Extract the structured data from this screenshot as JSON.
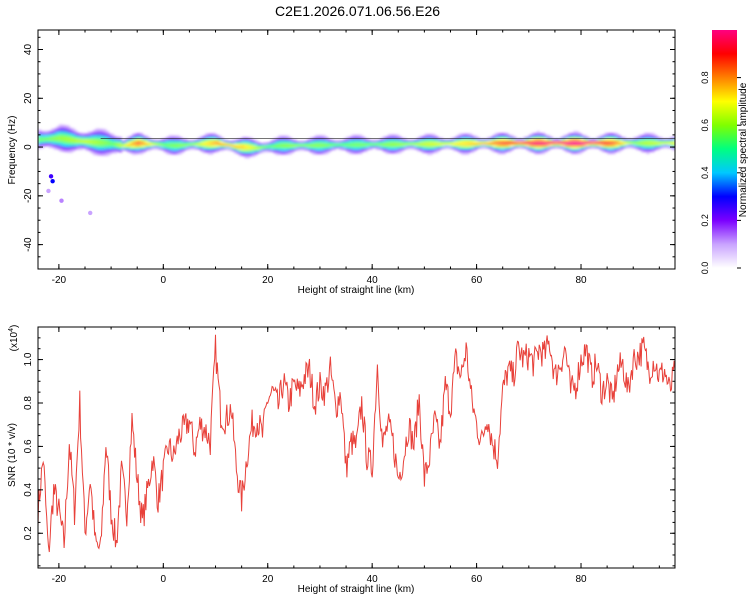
{
  "title": "C2E1.2026.071.06.56.E26",
  "chart_data": [
    {
      "type": "heatmap",
      "title": "C2E1.2026.071.06.56.E26",
      "xlabel": "Height of straight line (km)",
      "ylabel": "Frequency (Hz)",
      "xlim": [
        -24,
        98
      ],
      "ylim": [
        -50,
        48
      ],
      "x_ticks": [
        -20,
        0,
        20,
        40,
        60,
        80
      ],
      "y_ticks": [
        -40,
        -20,
        0,
        20,
        40
      ],
      "colorbar": {
        "label": "Normalized spectral amplitude",
        "range": [
          0,
          1
        ],
        "ticks": [
          "0.0",
          "0.2",
          "0.4",
          "0.6",
          "0.8"
        ],
        "tick_values": [
          0,
          0.2,
          0.4,
          0.6,
          0.8
        ],
        "colors": [
          "#ffffff",
          "#c9a3ff",
          "#7b00ff",
          "#0000ff",
          "#00c8ff",
          "#00ff80",
          "#80ff00",
          "#ffff00",
          "#ff8000",
          "#ff0000",
          "#ff0080"
        ]
      },
      "ridge": {
        "description_free": true,
        "center_freq_hz": [
          [
            -24,
            3
          ],
          [
            -20,
            3.5
          ],
          [
            -17,
            2.5
          ],
          [
            -14,
            2
          ],
          [
            -11,
            1.5
          ],
          [
            -8,
            0.5
          ],
          [
            -5,
            1.5
          ],
          [
            -2,
            1
          ],
          [
            2,
            0.5
          ],
          [
            6,
            1
          ],
          [
            10,
            1.5
          ],
          [
            14,
            0
          ],
          [
            18,
            -0.5
          ],
          [
            22,
            0.5
          ],
          [
            26,
            0.5
          ],
          [
            35,
            0.8
          ],
          [
            45,
            1
          ],
          [
            55,
            1.2
          ],
          [
            65,
            1.5
          ],
          [
            75,
            1.5
          ],
          [
            85,
            1.5
          ],
          [
            90,
            1.5
          ],
          [
            98,
            1.5
          ]
        ],
        "peak_amplitude": [
          [
            -24,
            0.55
          ],
          [
            -20,
            0.6
          ],
          [
            -15,
            0.65
          ],
          [
            -10,
            0.55
          ],
          [
            -5,
            0.85
          ],
          [
            0,
            0.55
          ],
          [
            5,
            0.6
          ],
          [
            10,
            0.8
          ],
          [
            15,
            0.75
          ],
          [
            20,
            0.55
          ],
          [
            25,
            0.6
          ],
          [
            35,
            0.55
          ],
          [
            45,
            0.6
          ],
          [
            55,
            0.7
          ],
          [
            62,
            0.8
          ],
          [
            68,
            0.95
          ],
          [
            75,
            1.0
          ],
          [
            82,
            1.0
          ],
          [
            86,
            0.85
          ],
          [
            90,
            0.6
          ],
          [
            98,
            0.7
          ]
        ]
      }
    },
    {
      "type": "line",
      "xlabel": "Height of straight line (km)",
      "ylabel": "SNR (10 * v/v)",
      "y_exponent_label": "(x10",
      "y_exponent_power": "4",
      "xlim": [
        -24,
        98
      ],
      "ylim": [
        0.04,
        1.15
      ],
      "x_ticks": [
        -20,
        0,
        20,
        40,
        60,
        80
      ],
      "y_ticks": [
        0.2,
        0.4,
        0.6,
        0.8,
        1.0
      ],
      "y_tick_labels": [
        "0.2",
        "0.4",
        "0.6",
        "0.8",
        "1.0"
      ],
      "color": "#e8413a",
      "series": [
        {
          "name": "SNR",
          "x": [
            -24,
            -23,
            -22,
            -21,
            -20,
            -19,
            -18,
            -17,
            -16,
            -15,
            -14,
            -13,
            -12,
            -11,
            -10,
            -9,
            -8,
            -7,
            -6,
            -5,
            -4,
            -3,
            -2,
            -1,
            0,
            1,
            2,
            3,
            4,
            5,
            6,
            7,
            8,
            9,
            10,
            11,
            12,
            13,
            14,
            15,
            16,
            17,
            18,
            19,
            20,
            21,
            22,
            23,
            24,
            25,
            26,
            27,
            28,
            29,
            30,
            31,
            32,
            33,
            34,
            35,
            36,
            37,
            38,
            39,
            40,
            41,
            42,
            43,
            44,
            45,
            46,
            47,
            48,
            49,
            50,
            51,
            52,
            53,
            54,
            55,
            56,
            57,
            58,
            59,
            60,
            61,
            62,
            63,
            64,
            65,
            66,
            67,
            68,
            69,
            70,
            71,
            72,
            73,
            74,
            75,
            76,
            77,
            78,
            79,
            80,
            81,
            82,
            83,
            84,
            85,
            86,
            87,
            88,
            89,
            90,
            91,
            92,
            93,
            94,
            95,
            96,
            97,
            98
          ],
          "values": [
            0.3,
            0.55,
            0.1,
            0.4,
            0.3,
            0.15,
            0.62,
            0.3,
            0.8,
            0.2,
            0.45,
            0.15,
            0.12,
            0.62,
            0.3,
            0.15,
            0.48,
            0.3,
            0.72,
            0.45,
            0.25,
            0.4,
            0.55,
            0.35,
            0.48,
            0.6,
            0.55,
            0.65,
            0.68,
            0.72,
            0.58,
            0.7,
            0.68,
            0.62,
            1.05,
            0.75,
            0.72,
            0.78,
            0.5,
            0.35,
            0.55,
            0.7,
            0.72,
            0.65,
            0.82,
            0.85,
            0.78,
            0.9,
            0.8,
            0.88,
            0.85,
            0.92,
            0.95,
            0.8,
            0.88,
            0.85,
            0.95,
            0.78,
            0.85,
            0.5,
            0.62,
            0.6,
            0.8,
            0.55,
            0.5,
            0.98,
            0.6,
            0.7,
            0.62,
            0.45,
            0.55,
            0.7,
            0.6,
            0.82,
            0.45,
            0.55,
            0.72,
            0.6,
            0.88,
            0.78,
            1.0,
            0.92,
            1.05,
            0.82,
            0.7,
            0.62,
            0.75,
            0.62,
            0.55,
            0.85,
            0.95,
            0.92,
            1.05,
            1.0,
            1.02,
            0.98,
            1.05,
            1.02,
            1.08,
            0.92,
            0.98,
            1.05,
            0.85,
            0.88,
            1.0,
            1.05,
            0.92,
            0.98,
            0.85,
            0.9,
            0.8,
            0.95,
            0.98,
            0.85,
            1.0,
            1.02,
            1.05,
            0.95,
            1.0,
            0.92,
            0.95,
            0.85,
            0.95
          ]
        }
      ]
    }
  ]
}
